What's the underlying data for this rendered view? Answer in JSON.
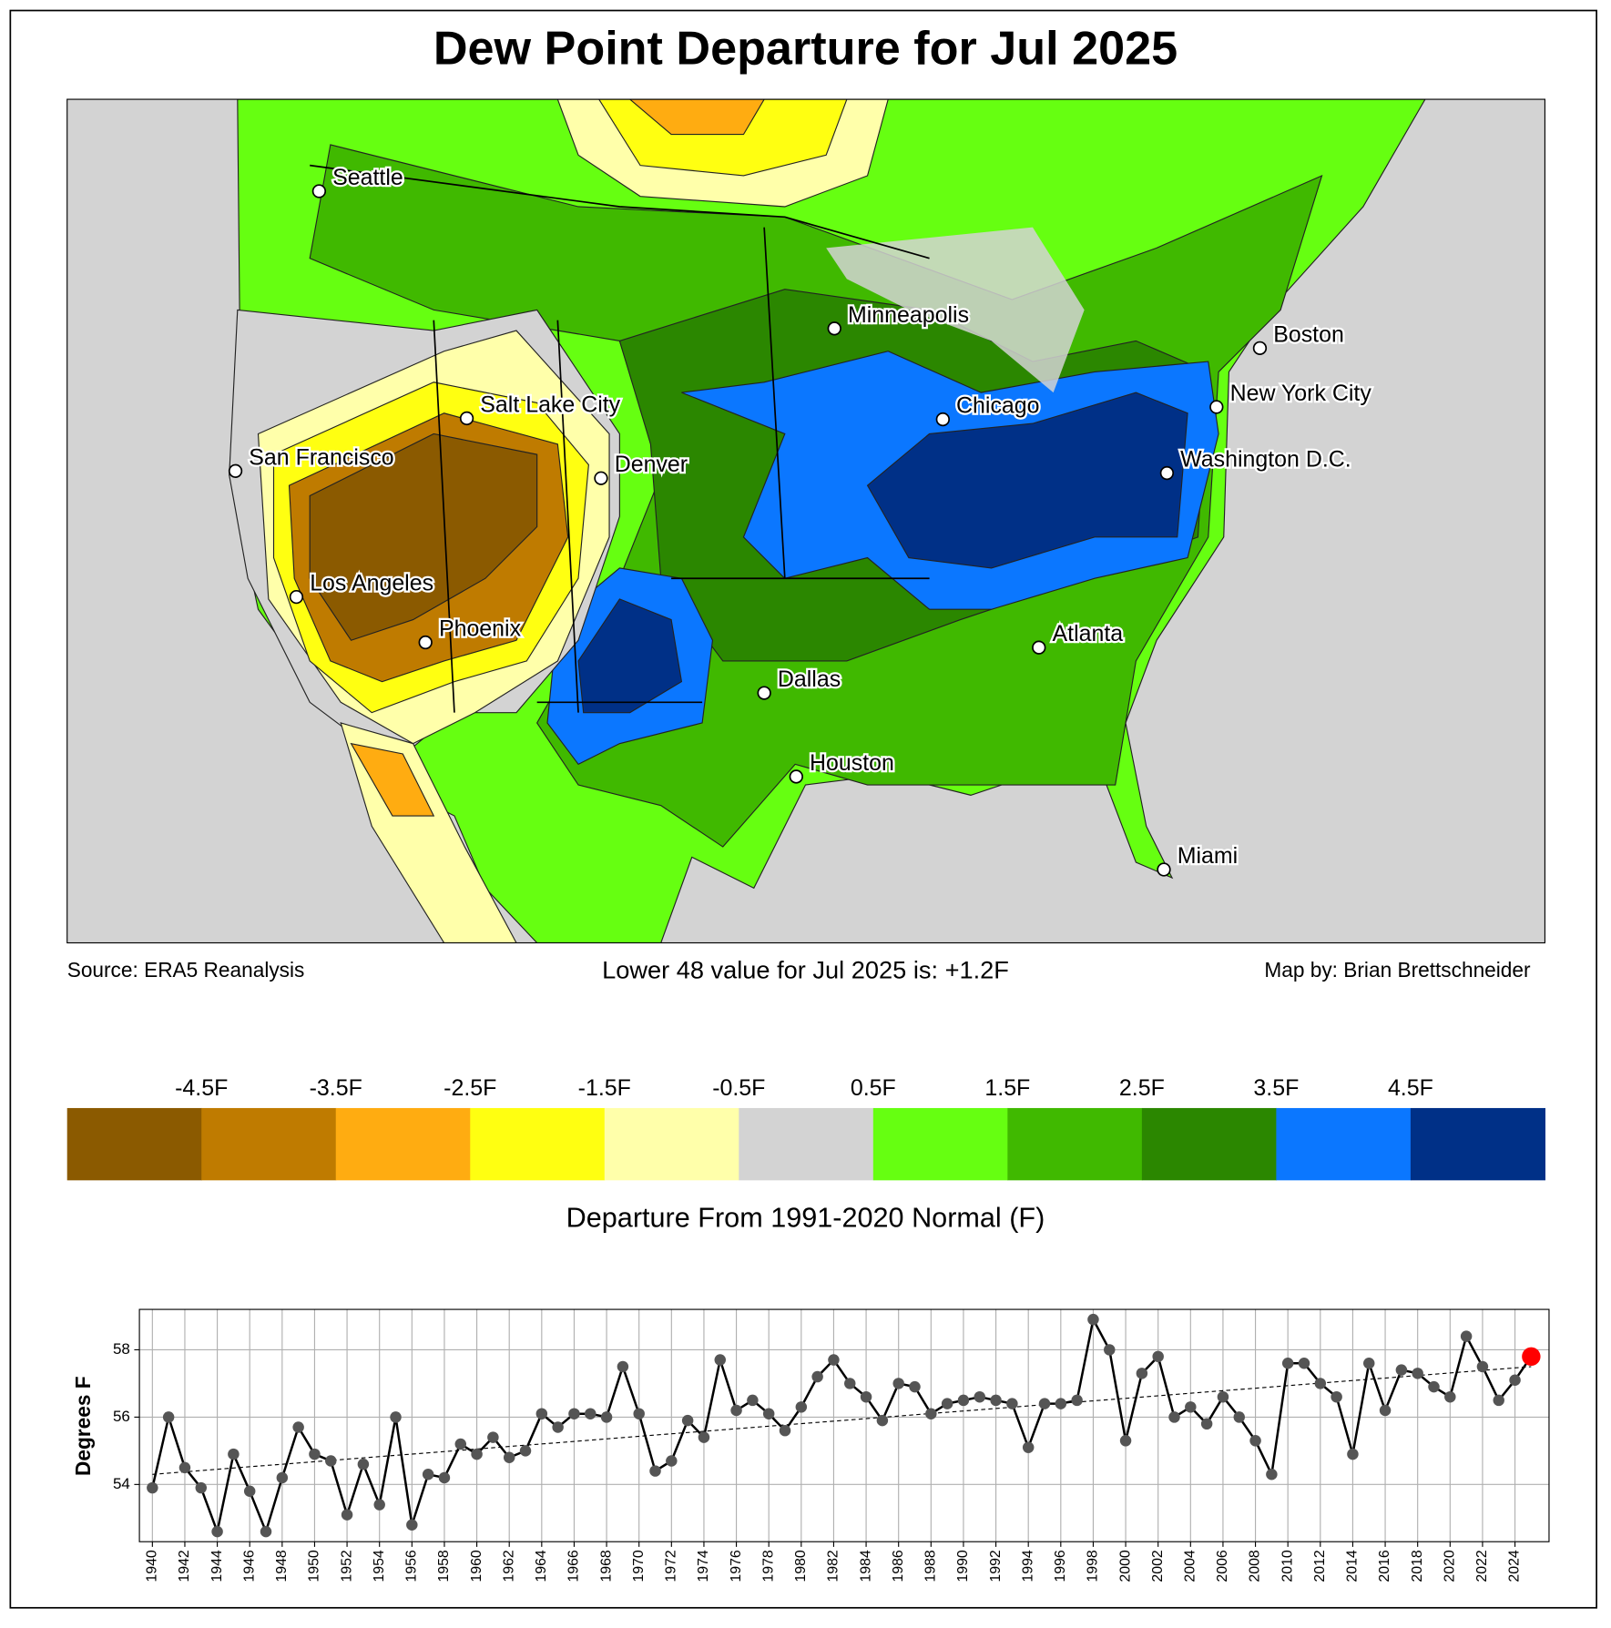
{
  "title": "Dew Point Departure for Jul 2025",
  "map": {
    "cities": [
      "Seattle",
      "Minneapolis",
      "Boston",
      "Salt Lake City",
      "Chicago",
      "New York City",
      "San Francisco",
      "Denver",
      "Washington D.C.",
      "Los Angeles",
      "Phoenix",
      "Atlanta",
      "Dallas",
      "Houston",
      "Miami"
    ],
    "source": "Source: ERA5 Reanalysis",
    "summary": "Lower 48 value for Jul 2025 is: +1.2F",
    "credit": "Map by: Brian Brettschneider"
  },
  "colorbar": {
    "label": "Departure From 1991-2020 Normal (F)",
    "lim": [
      -5.5,
      5.5
    ],
    "colors": [
      "#8b5a00",
      "#bf7b00",
      "#ffac11",
      "#ffff11",
      "#ffffaa",
      "#d3d3d3",
      "#66ff11",
      "#40b900",
      "#2b8700",
      "#0b77ff",
      "#003087"
    ],
    "ticks": [
      {
        "value": -4.5,
        "label": "-4.5F"
      },
      {
        "value": -3.5,
        "label": "-3.5F"
      },
      {
        "value": -2.5,
        "label": "-2.5F"
      },
      {
        "value": -1.5,
        "label": "-1.5F"
      },
      {
        "value": -0.5,
        "label": "-0.5F"
      },
      {
        "value": 0.5,
        "label": "0.5F"
      },
      {
        "value": 1.5,
        "label": "1.5F"
      },
      {
        "value": 2.5,
        "label": "2.5F"
      },
      {
        "value": 3.5,
        "label": "3.5F"
      },
      {
        "value": 4.5,
        "label": "4.5F"
      }
    ]
  },
  "chart_data": {
    "type": "line",
    "y_label": "Degrees F",
    "x": [
      1940,
      1941,
      1942,
      1943,
      1944,
      1945,
      1946,
      1947,
      1948,
      1949,
      1950,
      1951,
      1952,
      1953,
      1954,
      1955,
      1956,
      1957,
      1958,
      1959,
      1960,
      1961,
      1962,
      1963,
      1964,
      1965,
      1966,
      1967,
      1968,
      1969,
      1970,
      1971,
      1972,
      1973,
      1974,
      1975,
      1976,
      1977,
      1978,
      1979,
      1980,
      1981,
      1982,
      1983,
      1984,
      1985,
      1986,
      1987,
      1988,
      1989,
      1990,
      1991,
      1992,
      1993,
      1994,
      1995,
      1996,
      1997,
      1998,
      1999,
      2000,
      2001,
      2002,
      2003,
      2004,
      2005,
      2006,
      2007,
      2008,
      2009,
      2010,
      2011,
      2012,
      2013,
      2014,
      2015,
      2016,
      2017,
      2018,
      2019,
      2020,
      2021,
      2022,
      2023,
      2024,
      2025
    ],
    "series": [
      {
        "color": "#000000",
        "marker_color": "#555555",
        "highlight_color": "#ff0000",
        "values": [
          53.9,
          56.0,
          54.5,
          53.9,
          52.6,
          54.9,
          53.8,
          52.6,
          54.2,
          55.7,
          54.9,
          54.7,
          53.1,
          54.6,
          53.4,
          56.0,
          52.8,
          54.3,
          54.2,
          55.2,
          54.9,
          55.4,
          54.8,
          55.0,
          56.1,
          55.7,
          56.1,
          56.1,
          56.0,
          57.5,
          56.1,
          54.4,
          54.7,
          55.9,
          55.4,
          57.7,
          56.2,
          56.5,
          56.1,
          55.6,
          56.3,
          57.2,
          57.7,
          57.0,
          56.6,
          55.9,
          57.0,
          56.9,
          56.1,
          56.4,
          56.5,
          56.6,
          56.5,
          56.4,
          55.1,
          56.4,
          56.4,
          56.5,
          58.9,
          58.0,
          55.3,
          57.3,
          57.8,
          56.0,
          56.3,
          55.8,
          56.6,
          56.0,
          55.3,
          54.3,
          57.6,
          57.6,
          57.0,
          56.6,
          54.9,
          57.6,
          56.2,
          57.4,
          57.3,
          56.9,
          56.6,
          58.4,
          57.5,
          56.5,
          57.1,
          57.8
        ]
      }
    ],
    "trend": {
      "x": [
        1940,
        2025
      ],
      "values": [
        54.3,
        57.5
      ],
      "color": "#000000"
    },
    "xlim": [
      1939.2,
      2026.1
    ],
    "ylim": [
      52.3,
      59.2
    ],
    "xticks": [
      1940,
      1942,
      1944,
      1946,
      1948,
      1950,
      1952,
      1954,
      1956,
      1958,
      1960,
      1962,
      1964,
      1966,
      1968,
      1970,
      1972,
      1974,
      1976,
      1978,
      1980,
      1982,
      1984,
      1986,
      1988,
      1990,
      1992,
      1994,
      1996,
      1998,
      2000,
      2002,
      2004,
      2006,
      2008,
      2010,
      2012,
      2014,
      2016,
      2018,
      2020,
      2022,
      2024
    ],
    "yticks": [
      54,
      56,
      58
    ],
    "grid": true
  }
}
